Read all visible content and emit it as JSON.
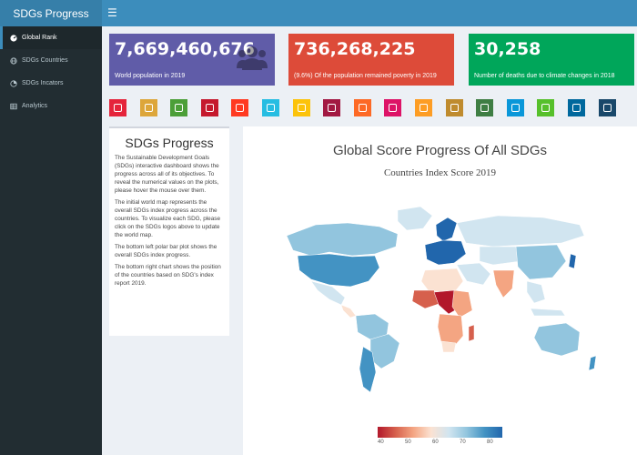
{
  "app": {
    "title": "SDGs Progress",
    "menu_icon": "hamburger-icon"
  },
  "sidebar": {
    "items": [
      {
        "label": "Global Rank",
        "icon": "dashboard-icon",
        "active": true
      },
      {
        "label": "SDGs Countries",
        "icon": "globe-icon",
        "active": false
      },
      {
        "label": "SDGs Incators",
        "icon": "chart-icon",
        "active": false
      },
      {
        "label": "Analytics",
        "icon": "table-icon",
        "active": false
      }
    ]
  },
  "value_boxes": [
    {
      "value": "7,669,460,676",
      "label": "World population in 2019",
      "color": "#605ca8",
      "icon": "users-icon"
    },
    {
      "value": "736,268,225",
      "label": "(9.6%) Of the population remained poverty in 2019",
      "color": "#dd4b39"
    },
    {
      "value": "30,258",
      "label": "Number of deaths due to climate changes in 2018",
      "color": "#00a65a"
    }
  ],
  "sdg_icons": [
    {
      "name": "sdg-1-icon",
      "color": "#e5243b"
    },
    {
      "name": "sdg-2-icon",
      "color": "#dda63a"
    },
    {
      "name": "sdg-3-icon",
      "color": "#4c9f38"
    },
    {
      "name": "sdg-4-icon",
      "color": "#c5192d"
    },
    {
      "name": "sdg-5-icon",
      "color": "#ff3a21"
    },
    {
      "name": "sdg-6-icon",
      "color": "#26bde2"
    },
    {
      "name": "sdg-7-icon",
      "color": "#fcc30b"
    },
    {
      "name": "sdg-8-icon",
      "color": "#a21942"
    },
    {
      "name": "sdg-9-icon",
      "color": "#fd6925"
    },
    {
      "name": "sdg-10-icon",
      "color": "#dd1367"
    },
    {
      "name": "sdg-11-icon",
      "color": "#fd9d24"
    },
    {
      "name": "sdg-12-icon",
      "color": "#bf8b2e"
    },
    {
      "name": "sdg-13-icon",
      "color": "#3f7e44"
    },
    {
      "name": "sdg-14-icon",
      "color": "#0a97d9"
    },
    {
      "name": "sdg-15-icon",
      "color": "#56c02b"
    },
    {
      "name": "sdg-16-icon",
      "color": "#00689d"
    },
    {
      "name": "sdg-17-icon",
      "color": "#19486a"
    }
  ],
  "description": {
    "title": "SDGs Progress",
    "paragraphs": [
      "The Sustainable Development Goals (SDGs) interactive dashboard shows the progress across all of its objectives. To reveal the numerical values on the plots, please hover the mouse over them.",
      "The initial world map represents the overall SDGs index progress across the countries. To visualize each SDG, please click on the SDGs logos above to update the world map.",
      "The bottom left polar bar plot shows the overall SDGs index progress.",
      "The bottom right chart shows the position of the countries based on SDG's index report 2019."
    ]
  },
  "map": {
    "title": "Global Score Progress Of All SDGs",
    "subtitle": "Countries Index Score 2019",
    "legend_ticks": [
      "40",
      "50",
      "60",
      "70",
      "80"
    ],
    "legend_colors": [
      "#b2182b",
      "#d6604d",
      "#f4a582",
      "#fbe2d2",
      "#d1e5f0",
      "#92c5de",
      "#4393c3",
      "#2166ac"
    ]
  }
}
